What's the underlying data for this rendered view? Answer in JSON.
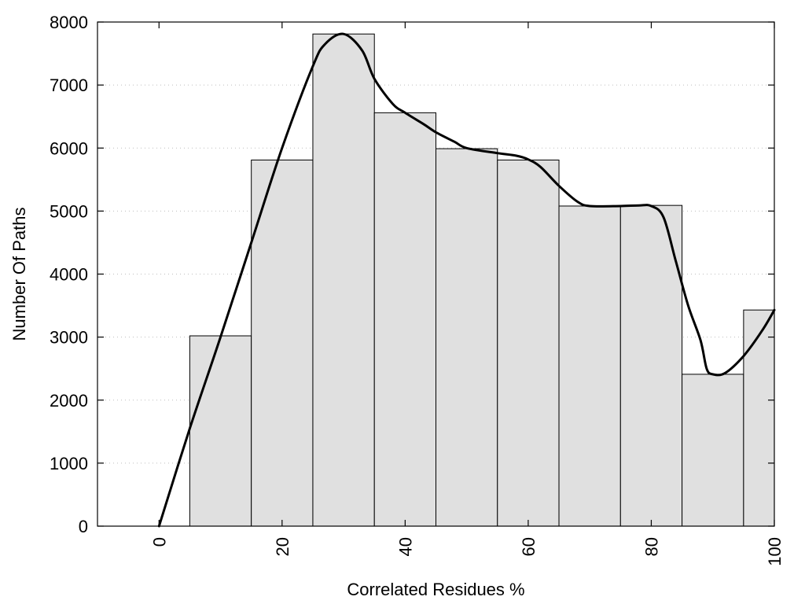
{
  "chart_data": {
    "type": "bar",
    "xlabel": "Correlated Residues %",
    "ylabel": "Number Of Paths",
    "xlim": [
      -10,
      100
    ],
    "ylim": [
      0,
      8000
    ],
    "grid": "horizontal-dotted",
    "bar_width": 10,
    "bar_color": "#e0e0e0",
    "x_ticks": [
      0,
      20,
      40,
      60,
      80,
      100
    ],
    "y_ticks": [
      0,
      1000,
      2000,
      3000,
      4000,
      5000,
      6000,
      7000,
      8000
    ],
    "bars": [
      {
        "x": 10,
        "value": 3020
      },
      {
        "x": 20,
        "value": 5810
      },
      {
        "x": 30,
        "value": 7810
      },
      {
        "x": 40,
        "value": 6560
      },
      {
        "x": 50,
        "value": 5990
      },
      {
        "x": 60,
        "value": 5810
      },
      {
        "x": 70,
        "value": 5080
      },
      {
        "x": 80,
        "value": 5090
      },
      {
        "x": 90,
        "value": 2410
      },
      {
        "x": 100,
        "value": 3430
      }
    ],
    "curve": {
      "x": [
        0,
        5,
        10,
        15,
        20,
        25,
        27,
        30,
        33,
        35,
        38,
        40,
        43,
        45,
        48,
        50,
        55,
        58,
        60,
        62,
        65,
        68,
        70,
        75,
        78,
        80,
        82,
        84,
        86,
        88,
        89,
        90,
        92,
        95,
        98,
        100
      ],
      "y": [
        0,
        1550,
        3000,
        4500,
        6000,
        7300,
        7650,
        7810,
        7550,
        7100,
        6700,
        6560,
        6380,
        6250,
        6100,
        6000,
        5920,
        5880,
        5820,
        5700,
        5400,
        5150,
        5080,
        5080,
        5090,
        5080,
        4900,
        4200,
        3500,
        2950,
        2500,
        2410,
        2430,
        2700,
        3100,
        3430
      ]
    }
  }
}
